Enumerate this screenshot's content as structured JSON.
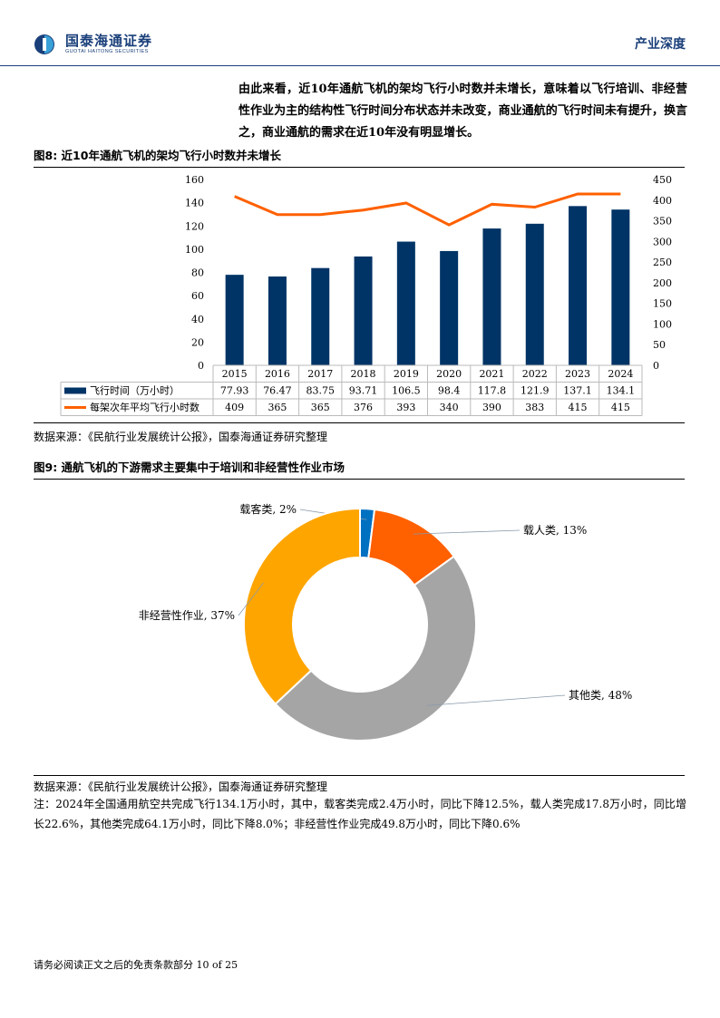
{
  "header": {
    "logo_cn": "国泰海通证券",
    "logo_en": "GUOTAI HAITONG SECURITIES",
    "section": "产业深度"
  },
  "intro": "由此来看，近10年通航飞机的架均飞行小时数并未增长，意味着以飞行培训、非经营性作业为主的结构性飞行时间分布状态并未改变，商业通航的飞行时间未有提升，换言之，商业通航的需求在近10年没有明显增长。",
  "fig8": {
    "title": "图8:  近10年通航飞机的架均飞行小时数并未增长",
    "source": "数据来源：《民航行业发展统计公报》，国泰海通证券研究整理"
  },
  "fig9": {
    "title": "图9:  通航飞机的下游需求主要集中于培训和非经营性作业市场",
    "source": "数据来源：《民航行业发展统计公报》，国泰海通证券研究整理"
  },
  "note": "注：2024年全国通用航空共完成飞行134.1万小时，其中，载客类完成2.4万小时，同比下降12.5%，载人类完成17.8万小时，同比增长22.6%，其他类完成64.1万小时，同比下降8.0%；非经营性作业完成49.8万小时，同比下降0.6%",
  "footer": "请务必阅读正文之后的免责条款部分 10 of 25",
  "colors": {
    "brand": "#1a3f7a",
    "bar": "#003466",
    "line": "#ff6000",
    "pie": [
      "#0070c0",
      "#ff6000",
      "#a5a5a5",
      "#ffa500"
    ]
  },
  "chart_data": [
    {
      "type": "bar",
      "categories": [
        "2015",
        "2016",
        "2017",
        "2018",
        "2019",
        "2020",
        "2021",
        "2022",
        "2023",
        "2024"
      ],
      "series": [
        {
          "name": "飞行时间（万小时）",
          "type": "bar",
          "axis": "left",
          "values": [
            77.93,
            76.47,
            83.75,
            93.71,
            106.5,
            98.4,
            117.8,
            121.9,
            137.1,
            134.1
          ],
          "labels": [
            "77.93",
            "76.47",
            "83.75",
            "93.71",
            "106.5",
            "98.4",
            "117.8",
            "121.9",
            "137.1",
            "134.1"
          ]
        },
        {
          "name": "每架次年平均飞行小时数",
          "type": "line",
          "axis": "right",
          "values": [
            409,
            365,
            365,
            376,
            393,
            340,
            390,
            383,
            415,
            415
          ],
          "labels": [
            "409",
            "365",
            "365",
            "376",
            "393",
            "340",
            "390",
            "383",
            "415",
            "415"
          ]
        }
      ],
      "ylim_left": [
        0,
        160
      ],
      "yticks_left": [
        "0",
        "20",
        "40",
        "60",
        "80",
        "100",
        "120",
        "140",
        "160"
      ],
      "ylim_right": [
        0,
        450
      ],
      "yticks_right": [
        "0",
        "50",
        "100",
        "150",
        "200",
        "250",
        "300",
        "350",
        "400",
        "450"
      ],
      "legend": "data-table-bottom",
      "grid": false
    },
    {
      "type": "pie",
      "style": "donut",
      "slices": [
        {
          "label": "载客类, 2%",
          "value": 2
        },
        {
          "label": "载人类, 13%",
          "value": 13
        },
        {
          "label": "其他类, 48%",
          "value": 48
        },
        {
          "label": "非经营性作业, 37%",
          "value": 37
        }
      ]
    }
  ]
}
